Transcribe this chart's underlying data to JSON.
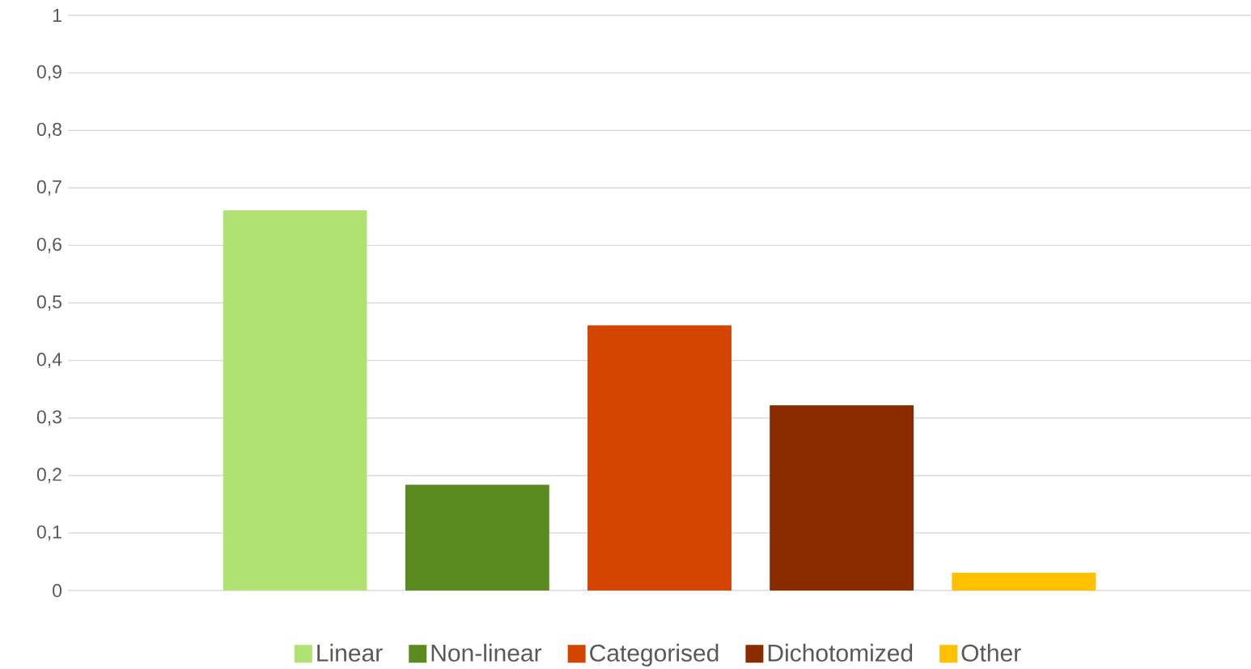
{
  "chart_data": {
    "type": "bar",
    "categories": [
      null
    ],
    "series": [
      {
        "name": "Linear",
        "color": "#b1e173",
        "values": [
          0.661
        ]
      },
      {
        "name": "Non-linear",
        "color": "#5b8a1f",
        "values": [
          0.184
        ]
      },
      {
        "name": "Categorised",
        "color": "#d34500",
        "values": [
          0.461
        ]
      },
      {
        "name": "Dichotomized",
        "color": "#8b2c00",
        "values": [
          0.322
        ]
      },
      {
        "name": "Other",
        "color": "#ffc000",
        "values": [
          0.031
        ]
      }
    ],
    "ylim": [
      0,
      1
    ],
    "yticks": [
      0,
      {
        "value": 0.1,
        "label": "0,1"
      },
      {
        "value": 0.2,
        "label": "0,2"
      },
      {
        "value": 0.3,
        "label": "0,3"
      },
      {
        "value": 0.4,
        "label": "0,4"
      },
      {
        "value": 0.5,
        "label": "0,5"
      },
      {
        "value": 0.6,
        "label": "0,6"
      },
      {
        "value": 0.7,
        "label": "0,7"
      },
      {
        "value": 0.8,
        "label": "0,8"
      },
      {
        "value": 0.9,
        "label": "0,9"
      },
      1
    ],
    "grid": "y",
    "legend": "bottom"
  }
}
